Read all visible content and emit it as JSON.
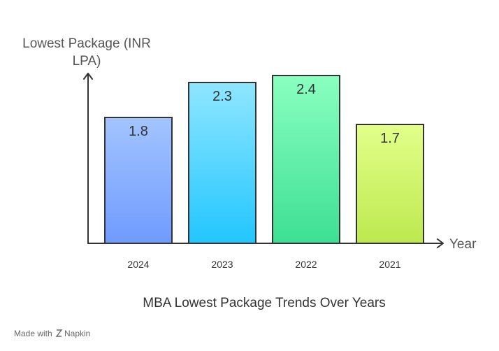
{
  "chart_data": {
    "type": "bar",
    "title": "MBA Lowest Package Trends Over Years",
    "ylabel_lines": [
      "Lowest Package (INR",
      "LPA)"
    ],
    "xlabel": "Year",
    "categories": [
      "2024",
      "2023",
      "2022",
      "2021"
    ],
    "values": [
      1.8,
      2.3,
      2.4,
      1.7
    ],
    "value_labels": [
      "1.8",
      "2.3",
      "2.4",
      "1.7"
    ],
    "ylim": [
      0,
      2.4
    ],
    "grid": false,
    "legend": "none",
    "colors": [
      [
        "#a3c4ff",
        "#6f9bff"
      ],
      [
        "#8fe6ff",
        "#22c6ff"
      ],
      [
        "#8affc0",
        "#3ddf93"
      ],
      [
        "#e2ff8a",
        "#bde94f"
      ]
    ]
  },
  "footer": {
    "made_with": "Made with",
    "brand": "Napkin"
  }
}
